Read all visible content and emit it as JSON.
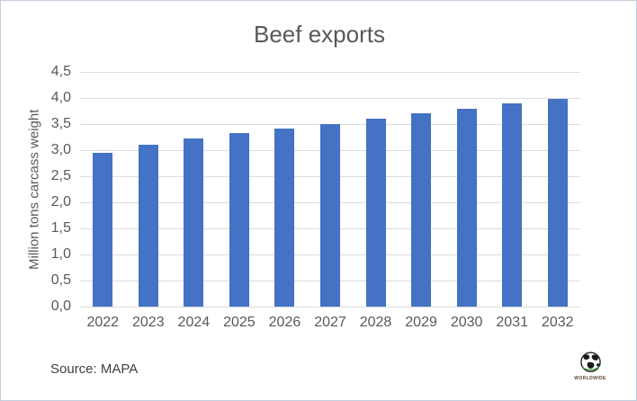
{
  "window": {
    "frame_border_color": "#c4cedd",
    "background": "#ffffff"
  },
  "chart_data": {
    "type": "bar",
    "title": "Beef exports",
    "categories": [
      "2022",
      "2023",
      "2024",
      "2025",
      "2026",
      "2027",
      "2028",
      "2029",
      "2030",
      "2031",
      "2032"
    ],
    "values": [
      2.95,
      3.1,
      3.23,
      3.32,
      3.42,
      3.5,
      3.6,
      3.7,
      3.8,
      3.9,
      3.98
    ],
    "xlabel": "",
    "ylabel": "Million tons carcass weight",
    "ylim": [
      0,
      4.5
    ],
    "ytick_step": 0.5,
    "ytick_labels": [
      "0,0",
      "0,5",
      "1,0",
      "1,5",
      "2,0",
      "2,5",
      "3,0",
      "3,5",
      "4,0",
      "4,5"
    ],
    "grid": true,
    "legend": false,
    "bar_color": "#4472C4",
    "gridline_color": "#dcdcdc",
    "text_color": "#595959"
  },
  "footer": {
    "source_label": "Source: MAPA"
  },
  "logo": {
    "text": "WORLDWIDE",
    "globe_outline_color": "#1a1a1a",
    "swoosh_color": "#35a03c",
    "text_color": "#5f4030"
  }
}
